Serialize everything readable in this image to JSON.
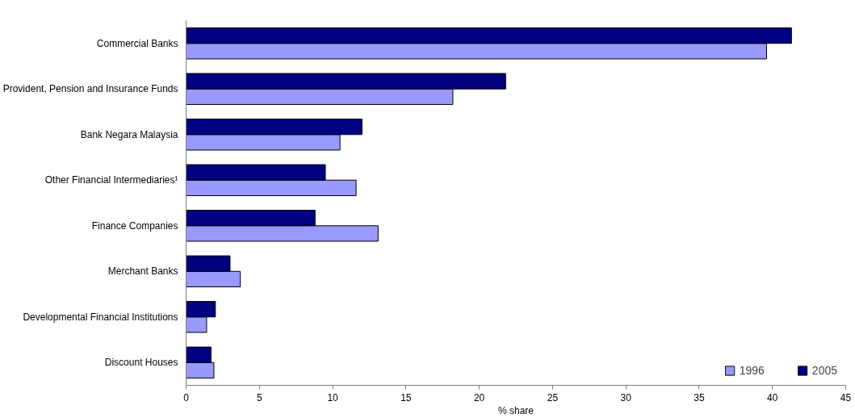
{
  "chart_data": {
    "type": "bar",
    "orientation": "horizontal",
    "xlabel": "% share",
    "categories": [
      "Commercial Banks",
      "Provident, Pension and Insurance Funds",
      "Bank Negara Malaysia",
      "Other Financial Intermediaries¹",
      "Finance Companies",
      "Merchant Banks",
      "Developmental Financial Institutions",
      "Discount Houses"
    ],
    "series": [
      {
        "name": "1996",
        "color": "#9999ff",
        "values": [
          39.6,
          18.2,
          10.5,
          11.6,
          13.1,
          3.7,
          1.4,
          1.9
        ]
      },
      {
        "name": "2005",
        "color": "#000080",
        "values": [
          41.3,
          21.8,
          12.0,
          9.5,
          8.8,
          3.0,
          2.0,
          1.7
        ]
      }
    ],
    "xlim": [
      0,
      45
    ],
    "xticks": [
      0,
      5,
      10,
      15,
      20,
      25,
      30,
      35,
      40,
      45
    ],
    "grid": false,
    "legend": "bottom right"
  }
}
